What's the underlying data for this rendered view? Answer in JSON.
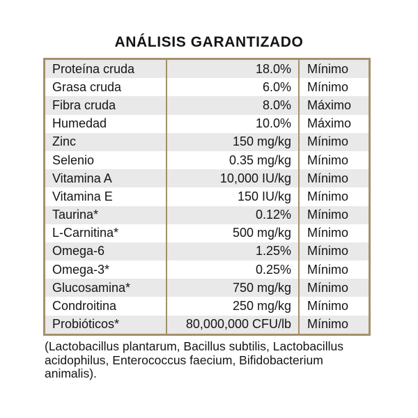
{
  "title": "ANÁLISIS GARANTIZADO",
  "colors": {
    "border_gold": "#a3916a",
    "row_shade": "#e9e9e9",
    "text": "#141414",
    "background": "#ffffff"
  },
  "table": {
    "columns": [
      "nutrient",
      "amount",
      "basis"
    ],
    "rows": [
      {
        "nutrient": "Proteína cruda",
        "amount": "18.0%",
        "basis": "Mínimo"
      },
      {
        "nutrient": "Grasa cruda",
        "amount": "6.0%",
        "basis": "Mínimo"
      },
      {
        "nutrient": "Fibra cruda",
        "amount": "8.0%",
        "basis": "Máximo"
      },
      {
        "nutrient": "Humedad",
        "amount": "10.0%",
        "basis": "Máximo"
      },
      {
        "nutrient": "Zinc",
        "amount": "150 mg/kg",
        "basis": "Mínimo"
      },
      {
        "nutrient": "Selenio",
        "amount": "0.35 mg/kg",
        "basis": "Mínimo"
      },
      {
        "nutrient": "Vitamina A",
        "amount": "10,000 IU/kg",
        "basis": "Mínimo"
      },
      {
        "nutrient": "Vitamina E",
        "amount": "150 IU/kg",
        "basis": "Mínimo"
      },
      {
        "nutrient": "Taurina*",
        "amount": "0.12%",
        "basis": "Mínimo"
      },
      {
        "nutrient": "L-Carnitina*",
        "amount": "500 mg/kg",
        "basis": "Mínimo"
      },
      {
        "nutrient": "Omega-6",
        "amount": "1.25%",
        "basis": "Mínimo"
      },
      {
        "nutrient": "Omega-3*",
        "amount": "0.25%",
        "basis": "Mínimo"
      },
      {
        "nutrient": "Glucosamina*",
        "amount": "750 mg/kg",
        "basis": "Mínimo"
      },
      {
        "nutrient": "Condroitina",
        "amount": "250 mg/kg",
        "basis": "Mínimo"
      },
      {
        "nutrient": "Probióticos*",
        "amount": "80,000,000 CFU/lb",
        "basis": "Mínimo"
      }
    ]
  },
  "footnote": {
    "lines": [
      "(Lactobacillus plantarum, Bacillus subtilis, Lactobacillus",
      "acidophilus, Enterococcus faecium, Bifidobacterium",
      "animalis)."
    ]
  }
}
